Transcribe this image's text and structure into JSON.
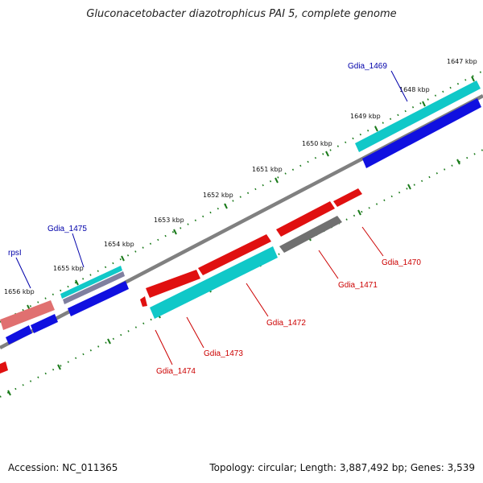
{
  "title": "Gluconacetobacter diazotrophicus PAI 5, complete genome",
  "footer": {
    "accession": "Accession: NC_011365",
    "topology": "Topology: circular; Length: 3,887,492 bp; Genes: 3,539"
  },
  "colors": {
    "forward_cds": "#e01010",
    "forward_rna_or_pseudo": "#707070",
    "blue_track": "#1010e0",
    "cyan_track": "#10c8c8",
    "pink_track": "#e07070",
    "backbone": "#808080",
    "tick": "#1a7a1a",
    "label_red": "#cc0000",
    "label_blue": "#0000aa"
  },
  "kbp_labels": [
    "1647 kbp",
    "1648 kbp",
    "1649 kbp",
    "1650 kbp",
    "1651 kbp",
    "1652 kbp",
    "1653 kbp",
    "1654 kbp",
    "1655 kbp",
    "1656 kbp"
  ],
  "gene_labels": {
    "gdia_1469": "Gdia_1469",
    "gdia_1470": "Gdia_1470",
    "gdia_1471": "Gdia_1471",
    "gdia_1472": "Gdia_1472",
    "gdia_1473": "Gdia_1473",
    "gdia_1474": "Gdia_1474",
    "gdia_1475": "Gdia_1475",
    "rpsl": "rpsI"
  }
}
